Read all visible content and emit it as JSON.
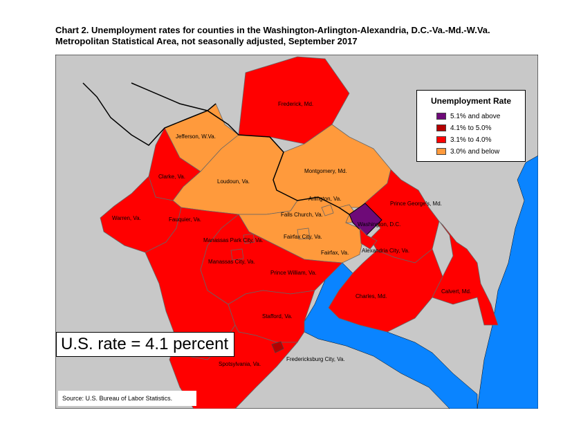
{
  "title_line1": "Chart 2. Unemployment rates for counties in the Washington-Arlington-Alexandria, D.C.-Va.-Md.-W.Va.",
  "title_line2": "Metropolitan Statistical Area, not seasonally adjusted, September 2017",
  "colors": {
    "background": "#c8c8c8",
    "water": "#0a84ff",
    "above_5_1": "#6e0a78",
    "r4_1_to_5_0": "#b40000",
    "r3_1_to_4_0": "#ff0000",
    "below_3_0": "#ff9a3c"
  },
  "legend": {
    "title": "Unemployment Rate",
    "items": [
      {
        "label": "5.1% and above",
        "color": "#6e0a78"
      },
      {
        "label": "4.1% to 5.0%",
        "color": "#b40000"
      },
      {
        "label": "3.1% to 4.0%",
        "color": "#ff0000"
      },
      {
        "label": "3.0% and below",
        "color": "#ff9a3c"
      }
    ]
  },
  "us_rate": "U.S. rate = 4.1 percent",
  "source": "Source: U.S. Bureau of Labor Statistics.",
  "counties": {
    "frederick": {
      "name": "Frederick, Md.",
      "category": "3.1% to 4.0%"
    },
    "jefferson": {
      "name": "Jefferson, W.Va.",
      "category": "3.0% and below"
    },
    "clarke": {
      "name": "Clarke, Va.",
      "category": "3.1% to 4.0%"
    },
    "loudoun": {
      "name": "Loudoun, Va.",
      "category": "3.0% and below"
    },
    "montgomery": {
      "name": "Montgomery, Md.",
      "category": "3.0% and below"
    },
    "arlington": {
      "name": "Arlington, Va.",
      "category": "3.0% and below"
    },
    "falls_church": {
      "name": "Falls Church, Va.",
      "category": "3.0% and below"
    },
    "washington_dc": {
      "name": "Washington, D.C.",
      "category": "5.1% and above"
    },
    "prince_georges": {
      "name": "Prince George's, Md.",
      "category": "3.1% to 4.0%"
    },
    "warren": {
      "name": "Warren, Va.",
      "category": "3.1% to 4.0%"
    },
    "fauquier": {
      "name": "Fauquier, Va.",
      "category": "3.1% to 4.0%"
    },
    "fairfax_city": {
      "name": "Fairfax City, Va.",
      "category": "3.0% and below"
    },
    "manassas_park": {
      "name": "Manassas Park City, Va.",
      "category": "3.1% to 4.0%"
    },
    "alexandria": {
      "name": "Alexandria City, Va.",
      "category": "3.1% to 4.0%"
    },
    "fairfax": {
      "name": "Fairfax, Va.",
      "category": "3.0% and below"
    },
    "manassas": {
      "name": "Manassas City, Va.",
      "category": "3.1% to 4.0%"
    },
    "prince_william": {
      "name": "Prince William, Va.",
      "category": "3.1% to 4.0%"
    },
    "charles": {
      "name": "Charles, Md.",
      "category": "3.1% to 4.0%"
    },
    "calvert": {
      "name": "Calvert, Md.",
      "category": "3.1% to 4.0%"
    },
    "stafford": {
      "name": "Stafford, Va.",
      "category": "3.1% to 4.0%"
    },
    "spotsylvania": {
      "name": "Spotsylvania, Va.",
      "category": "3.1% to 4.0%"
    },
    "fredericksburg": {
      "name": "Fredericksburg City, Va.",
      "category": "4.1% to 5.0%"
    }
  }
}
